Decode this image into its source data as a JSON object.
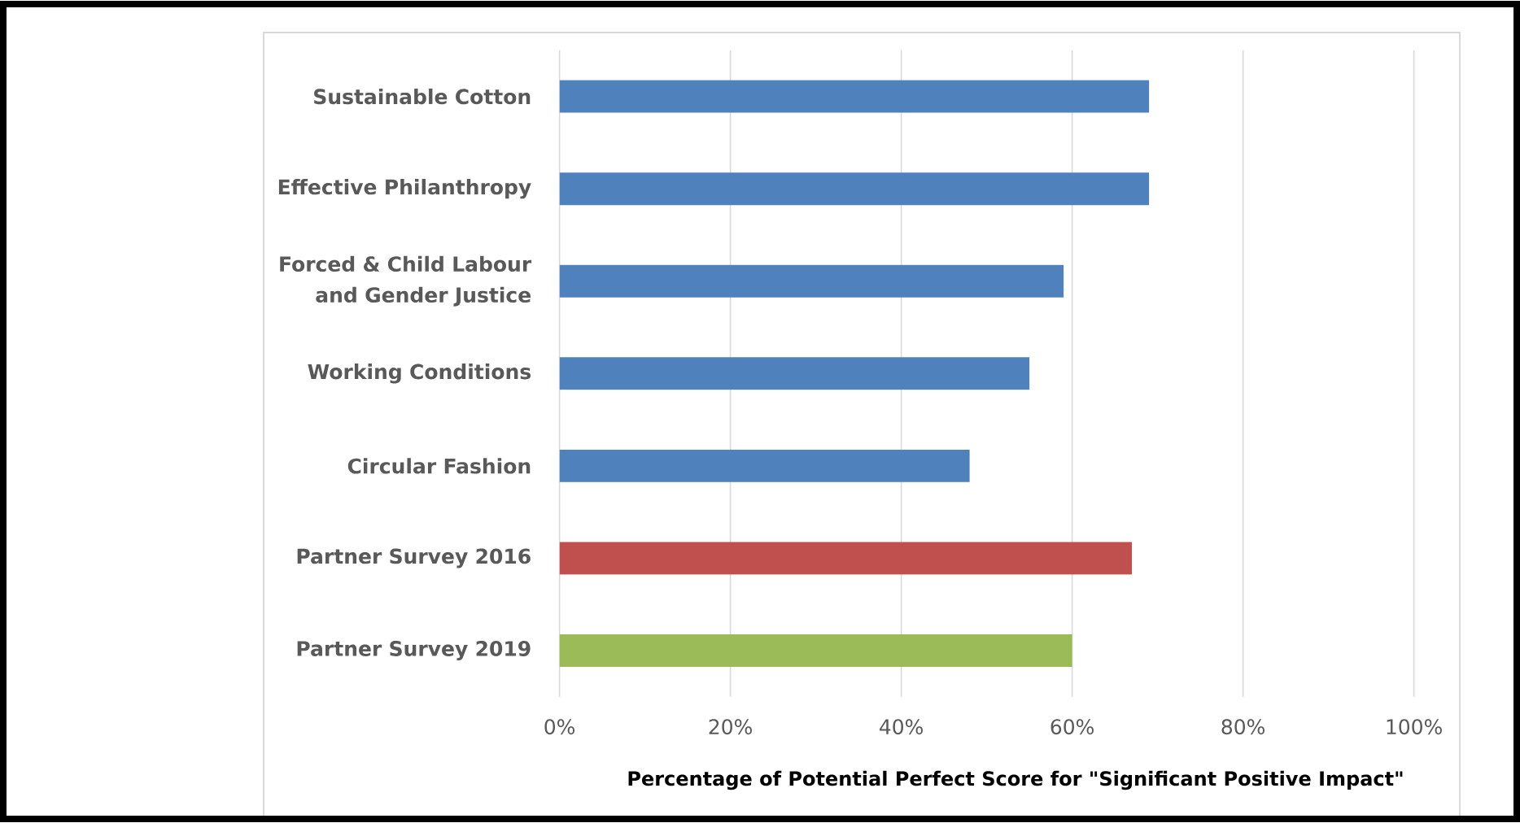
{
  "chart_data": {
    "type": "bar",
    "orientation": "horizontal",
    "xlabel": "Percentage of Potential Perfect Score for \"Significant Positive Impact\"",
    "categories": [
      "Sustainable Cotton",
      "Effective Philanthropy",
      "Forced & Child Labour and Gender Justice",
      "Working Conditions",
      "Circular Fashion",
      "Partner Survey 2016",
      "Partner Survey 2019"
    ],
    "values": [
      69,
      69,
      59,
      55,
      48,
      67,
      60
    ],
    "colors": [
      "#4f81bd",
      "#4f81bd",
      "#4f81bd",
      "#4f81bd",
      "#4f81bd",
      "#c0504d",
      "#9bbb59"
    ],
    "xlim": [
      0,
      100
    ],
    "xticks": [
      {
        "value": 0,
        "label": "0%"
      },
      {
        "value": 20,
        "label": "20%"
      },
      {
        "value": 40,
        "label": "40%"
      },
      {
        "value": 60,
        "label": "60%"
      },
      {
        "value": 80,
        "label": "80%"
      },
      {
        "value": 100,
        "label": "100%"
      }
    ],
    "grid": "x"
  }
}
